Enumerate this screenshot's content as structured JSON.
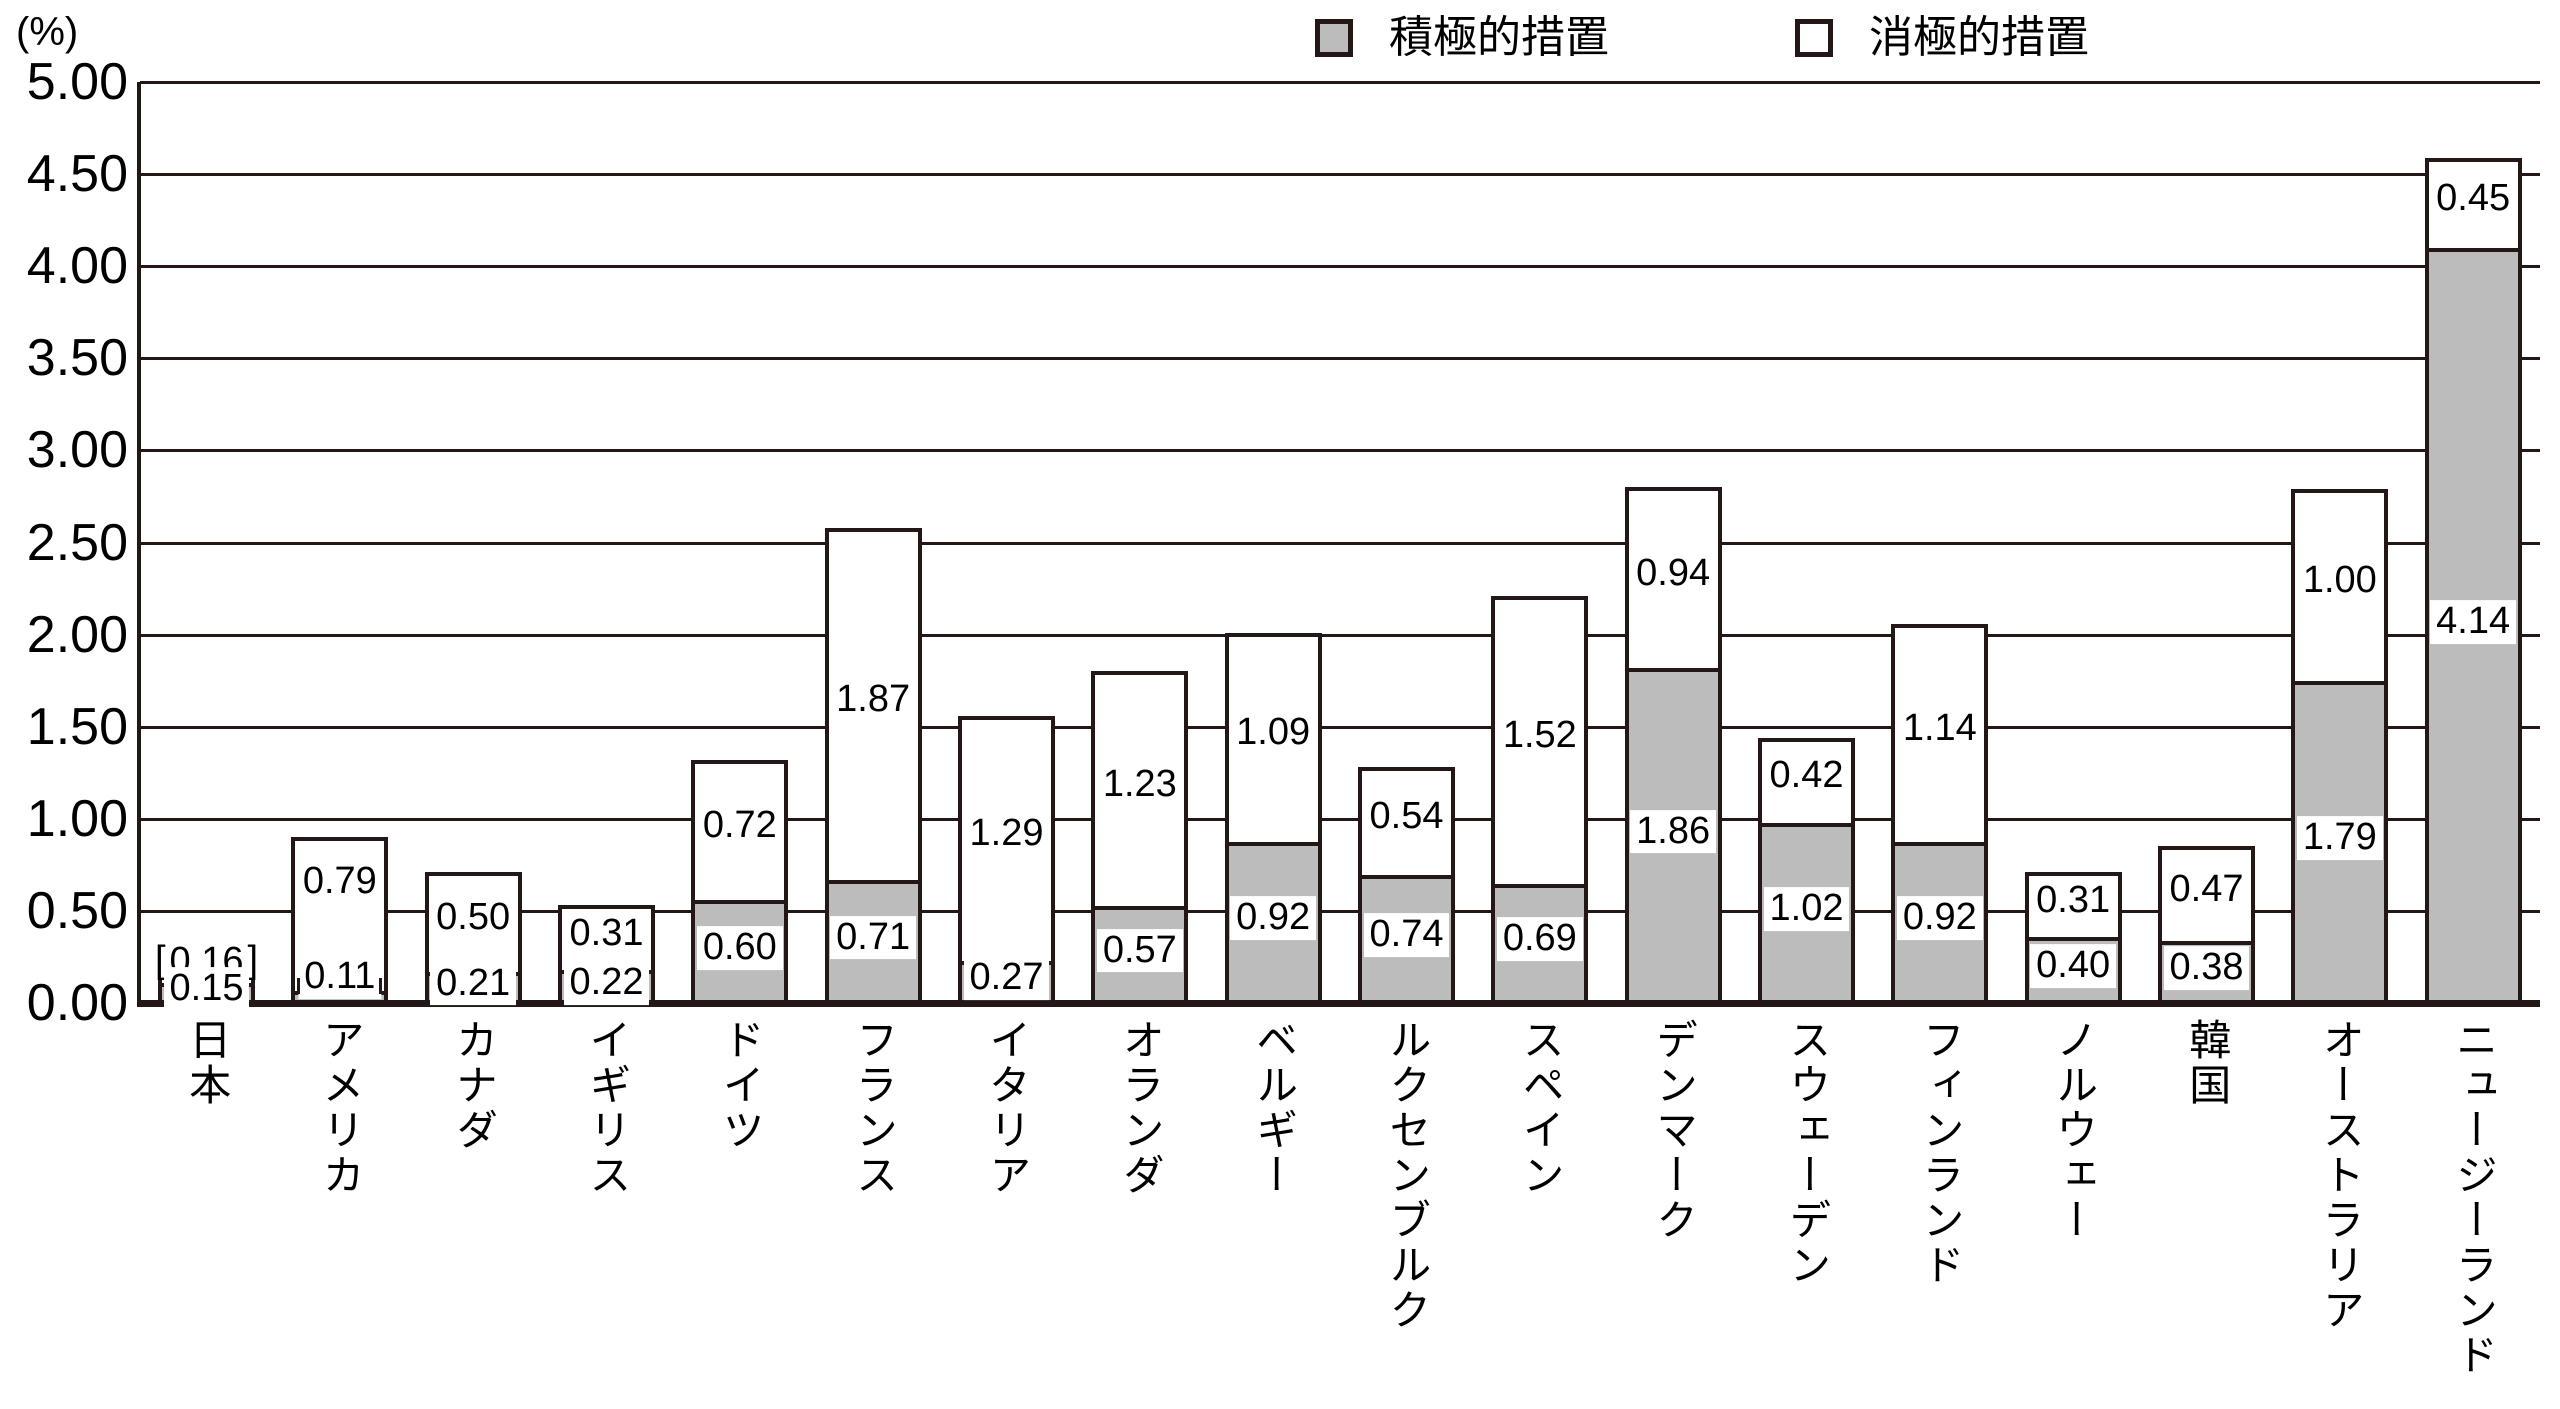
{
  "colors": {
    "ink": "#231815",
    "gray_fill": "#bcbcbd",
    "white_fill": "#ffffff",
    "background": "#ffffff"
  },
  "chart_data": {
    "type": "bar",
    "stacked": true,
    "title": "",
    "ylabel": "(%)",
    "xlabel": "",
    "ylim": [
      0,
      5
    ],
    "ytick_step": 0.5,
    "yticks": [
      "5.00",
      "4.50",
      "4.00",
      "3.50",
      "3.00",
      "2.50",
      "2.00",
      "1.50",
      "1.00",
      "0.50",
      "0.00"
    ],
    "grid": true,
    "legend_position": "top",
    "categories": [
      "日本",
      "アメリカ",
      "カナダ",
      "イギリス",
      "ドイツ",
      "フランス",
      "イタリア",
      "オランダ",
      "ベルギー",
      "ルクセンブルク",
      "スペイン",
      "デンマーク",
      "スウェーデン",
      "フィンランド",
      "ノルウェー",
      "韓国",
      "オーストラリア",
      "ニュージーランド"
    ],
    "series": [
      {
        "name": "積極的措置",
        "swatch": "gray",
        "values": [
          0.15,
          0.11,
          0.21,
          0.22,
          0.6,
          0.71,
          0.27,
          0.57,
          0.92,
          0.74,
          0.69,
          1.86,
          1.02,
          0.92,
          0.4,
          0.38,
          1.79,
          4.14
        ]
      },
      {
        "name": "消極的措置",
        "swatch": "white",
        "values": [
          0.16,
          0.79,
          0.5,
          0.31,
          0.72,
          1.87,
          1.29,
          1.23,
          1.09,
          0.54,
          1.52,
          0.94,
          0.42,
          1.14,
          0.31,
          0.47,
          1.0,
          0.45
        ]
      }
    ],
    "label_format": "0.00",
    "annotations": {
      "japan_bracketed_labels": [
        "0.16",
        "0.15"
      ],
      "usa_leader_label": "0.11"
    }
  }
}
